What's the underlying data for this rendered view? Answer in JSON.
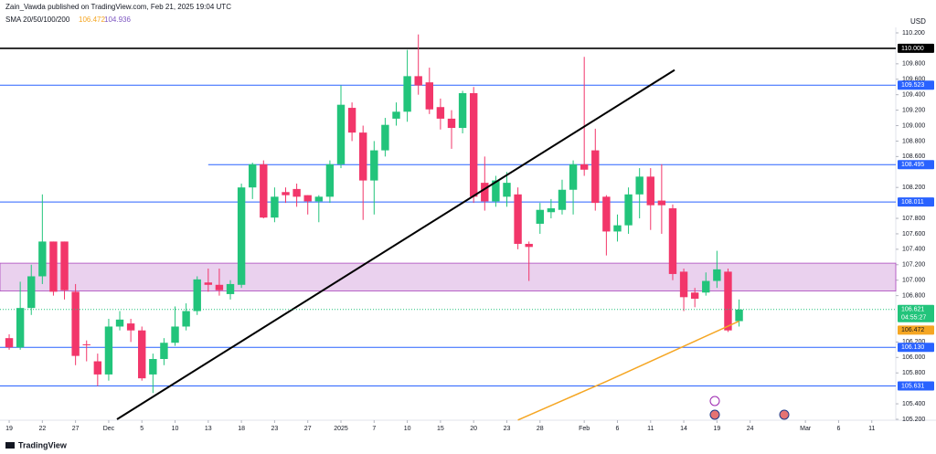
{
  "chart_data": {
    "type": "candlestick",
    "attribution": "Zain_Vawda published on TradingView.com, Feb 21, 2025 19:04 UTC",
    "indicator": {
      "name": "SMA 20/50/100/200",
      "values": [
        106.472,
        104.936
      ],
      "colors": [
        "#f5a623",
        "#7e57c2"
      ]
    },
    "currency": "USD",
    "brand": "TradingView",
    "up_color": "#22c47b",
    "down_color": "#f2366a",
    "candles": {
      "open": [
        106.25,
        106.13,
        106.64,
        107.05,
        107.5,
        107.5,
        106.85,
        106.17,
        105.95,
        105.78,
        106.4,
        106.44,
        106.35,
        105.78,
        105.98,
        106.19,
        106.4,
        106.6,
        106.97,
        106.94,
        106.82,
        106.94,
        108.2,
        108.5,
        107.81,
        108.14,
        108.18,
        108.1,
        108.02,
        108.08,
        108.5,
        109.23,
        108.91,
        108.29,
        108.68,
        109.09,
        109.18,
        109.64,
        109.56,
        109.24,
        109.09,
        108.97,
        109.42,
        108.26,
        108.02,
        108.08,
        108.11,
        107.47,
        107.73,
        107.88,
        107.91,
        108.17,
        108.5,
        108.68,
        108.08,
        107.63,
        107.71,
        108.11,
        108.34,
        108.03,
        107.93,
        107.11,
        106.84,
        106.84,
        106.99,
        107.11,
        106.47
      ],
      "high": [
        106.3,
        106.98,
        107.2,
        108.11,
        107.5,
        107.5,
        106.95,
        106.22,
        106.05,
        106.5,
        106.6,
        106.5,
        106.4,
        106.05,
        106.25,
        106.66,
        106.7,
        107.05,
        107.15,
        107.15,
        107.0,
        108.25,
        108.52,
        108.55,
        108.2,
        108.2,
        108.25,
        108.1,
        108.1,
        108.55,
        109.52,
        109.3,
        109.0,
        108.8,
        109.1,
        109.3,
        109.98,
        110.18,
        109.75,
        109.35,
        109.2,
        109.45,
        109.5,
        108.6,
        108.35,
        108.4,
        108.2,
        107.5,
        108.0,
        108.05,
        108.3,
        108.55,
        109.89,
        108.96,
        108.1,
        107.85,
        108.2,
        108.45,
        108.45,
        108.5,
        107.98,
        107.15,
        106.9,
        107.1,
        107.38,
        107.15,
        106.75
      ],
      "low": [
        106.1,
        106.1,
        106.55,
        106.95,
        106.8,
        106.75,
        105.9,
        105.95,
        105.63,
        105.7,
        106.35,
        106.2,
        105.7,
        105.54,
        105.9,
        106.15,
        106.35,
        106.55,
        106.85,
        106.8,
        106.75,
        106.9,
        108.05,
        107.8,
        107.75,
        108.0,
        107.95,
        107.85,
        107.75,
        108.0,
        108.45,
        108.8,
        107.78,
        107.85,
        108.6,
        109.0,
        109.05,
        109.4,
        109.15,
        108.95,
        108.7,
        108.9,
        108.0,
        107.9,
        107.95,
        107.95,
        107.4,
        106.99,
        107.6,
        107.8,
        107.85,
        107.85,
        108.35,
        107.9,
        107.32,
        107.5,
        107.6,
        107.8,
        107.65,
        107.6,
        107.0,
        106.6,
        106.65,
        106.8,
        106.9,
        106.33,
        106.4
      ],
      "close": [
        106.13,
        106.64,
        107.05,
        107.5,
        106.85,
        106.87,
        106.02,
        106.16,
        105.78,
        106.4,
        106.49,
        106.35,
        105.73,
        105.98,
        106.19,
        106.4,
        106.6,
        107.01,
        106.94,
        106.87,
        106.95,
        108.2,
        108.5,
        107.81,
        108.08,
        108.1,
        108.08,
        108.02,
        108.08,
        108.5,
        109.27,
        108.91,
        108.29,
        108.68,
        109.01,
        109.18,
        109.64,
        109.52,
        109.21,
        109.09,
        108.97,
        109.42,
        108.08,
        108.02,
        108.29,
        108.26,
        107.47,
        107.43,
        107.91,
        107.93,
        108.17,
        108.5,
        108.43,
        108.0,
        107.63,
        107.71,
        108.11,
        108.34,
        107.97,
        107.97,
        107.08,
        106.78,
        106.76,
        106.99,
        107.14,
        106.35,
        106.62
      ]
    },
    "xlim": [
      -0.83,
      80.17
    ],
    "ylim": [
      105.188,
      110.271
    ],
    "xticks": [
      {
        "value": 0,
        "label": "19"
      },
      {
        "value": 3,
        "label": "22"
      },
      {
        "value": 6,
        "label": "27"
      },
      {
        "value": 9,
        "label": "Dec"
      },
      {
        "value": 12,
        "label": "5"
      },
      {
        "value": 15,
        "label": "10"
      },
      {
        "value": 18,
        "label": "13"
      },
      {
        "value": 21,
        "label": "18"
      },
      {
        "value": 24,
        "label": "23"
      },
      {
        "value": 27,
        "label": "27"
      },
      {
        "value": 30,
        "label": "2025"
      },
      {
        "value": 33,
        "label": "7"
      },
      {
        "value": 36,
        "label": "10"
      },
      {
        "value": 39,
        "label": "15"
      },
      {
        "value": 42,
        "label": "20"
      },
      {
        "value": 45,
        "label": "23"
      },
      {
        "value": 48,
        "label": "28"
      },
      {
        "value": 52,
        "label": "Feb"
      },
      {
        "value": 55,
        "label": "6"
      },
      {
        "value": 58,
        "label": "11"
      },
      {
        "value": 61,
        "label": "14"
      },
      {
        "value": 64,
        "label": "19"
      },
      {
        "value": 67,
        "label": "24"
      },
      {
        "value": 72,
        "label": "Mar"
      },
      {
        "value": 75,
        "label": "6"
      },
      {
        "value": 78,
        "label": "11"
      }
    ],
    "yticks": [
      {
        "value": 110.2,
        "label": "110.200"
      },
      {
        "value": 109.8,
        "label": "109.800"
      },
      {
        "value": 109.6,
        "label": "109.600"
      },
      {
        "value": 109.4,
        "label": "109.400"
      },
      {
        "value": 109.2,
        "label": "109.200"
      },
      {
        "value": 109,
        "label": "109.000"
      },
      {
        "value": 108.8,
        "label": "108.800"
      },
      {
        "value": 108.6,
        "label": "108.600"
      },
      {
        "value": 108.2,
        "label": "108.200"
      },
      {
        "value": 107.8,
        "label": "107.800"
      },
      {
        "value": 107.6,
        "label": "107.600"
      },
      {
        "value": 107.4,
        "label": "107.400"
      },
      {
        "value": 107.2,
        "label": "107.200"
      },
      {
        "value": 107,
        "label": "107.000"
      },
      {
        "value": 106.8,
        "label": "106.800"
      },
      {
        "value": 106.2,
        "label": "106.200"
      },
      {
        "value": 106,
        "label": "106.000"
      },
      {
        "value": 105.8,
        "label": "105.800"
      },
      {
        "value": 105.4,
        "label": "105.400"
      },
      {
        "value": 105.2,
        "label": "105.200"
      }
    ],
    "levels": [
      {
        "value": {
          "value": 110,
          "label": "110.000"
        },
        "color": "#000000"
      },
      {
        "value": 109.523,
        "color": "#2962ff"
      },
      {
        "value": 108.495,
        "color": "#2962ff",
        "x_start": 18
      },
      {
        "value": 108.011,
        "color": "#2962ff"
      },
      {
        "value": {
          "value": 106.13,
          "label": "106.130"
        },
        "color": "#2962ff"
      },
      {
        "value": 105.631,
        "color": "#2962ff"
      }
    ],
    "zone": {
      "range": [
        106.86,
        107.22
      ],
      "color": "#e1bee7",
      "border": "#ab47bc"
    },
    "trendline": {
      "x": [
        9.75,
        60.17
      ],
      "values": [
        105.2,
        109.72
      ],
      "color": "#000000"
    },
    "sma": {
      "x": [
        46,
        50,
        54,
        58,
        62,
        66
      ],
      "values": [
        105.19,
        105.44,
        105.69,
        105.95,
        106.21,
        106.47
      ],
      "color": "#f5a623"
    },
    "last_price": {
      "value": 106.621,
      "countdown": "04:55:27",
      "color": "#22c47b"
    },
    "sma_price": {
      "value": 106.472,
      "color": "#f5a623"
    }
  }
}
